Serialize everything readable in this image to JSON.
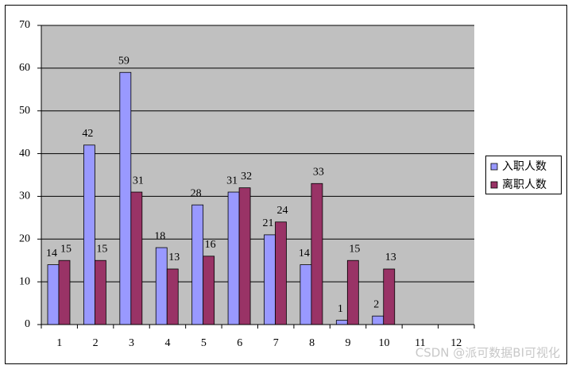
{
  "chart_data": {
    "type": "bar",
    "categories": [
      "1",
      "2",
      "3",
      "4",
      "5",
      "6",
      "7",
      "8",
      "9",
      "10",
      "11",
      "12"
    ],
    "series": [
      {
        "name": "入职人数",
        "color": "#9999ff",
        "values": [
          14,
          42,
          59,
          18,
          28,
          31,
          21,
          14,
          1,
          2,
          null,
          null
        ]
      },
      {
        "name": "离职人数",
        "color": "#993366",
        "values": [
          15,
          15,
          31,
          13,
          16,
          32,
          24,
          33,
          15,
          13,
          null,
          null
        ]
      }
    ],
    "ylim": [
      0,
      70
    ],
    "yticks": [
      0,
      10,
      20,
      30,
      40,
      50,
      60,
      70
    ],
    "grid": true,
    "legend": "right",
    "watermark": "CSDN @派可数据BI可视化"
  }
}
